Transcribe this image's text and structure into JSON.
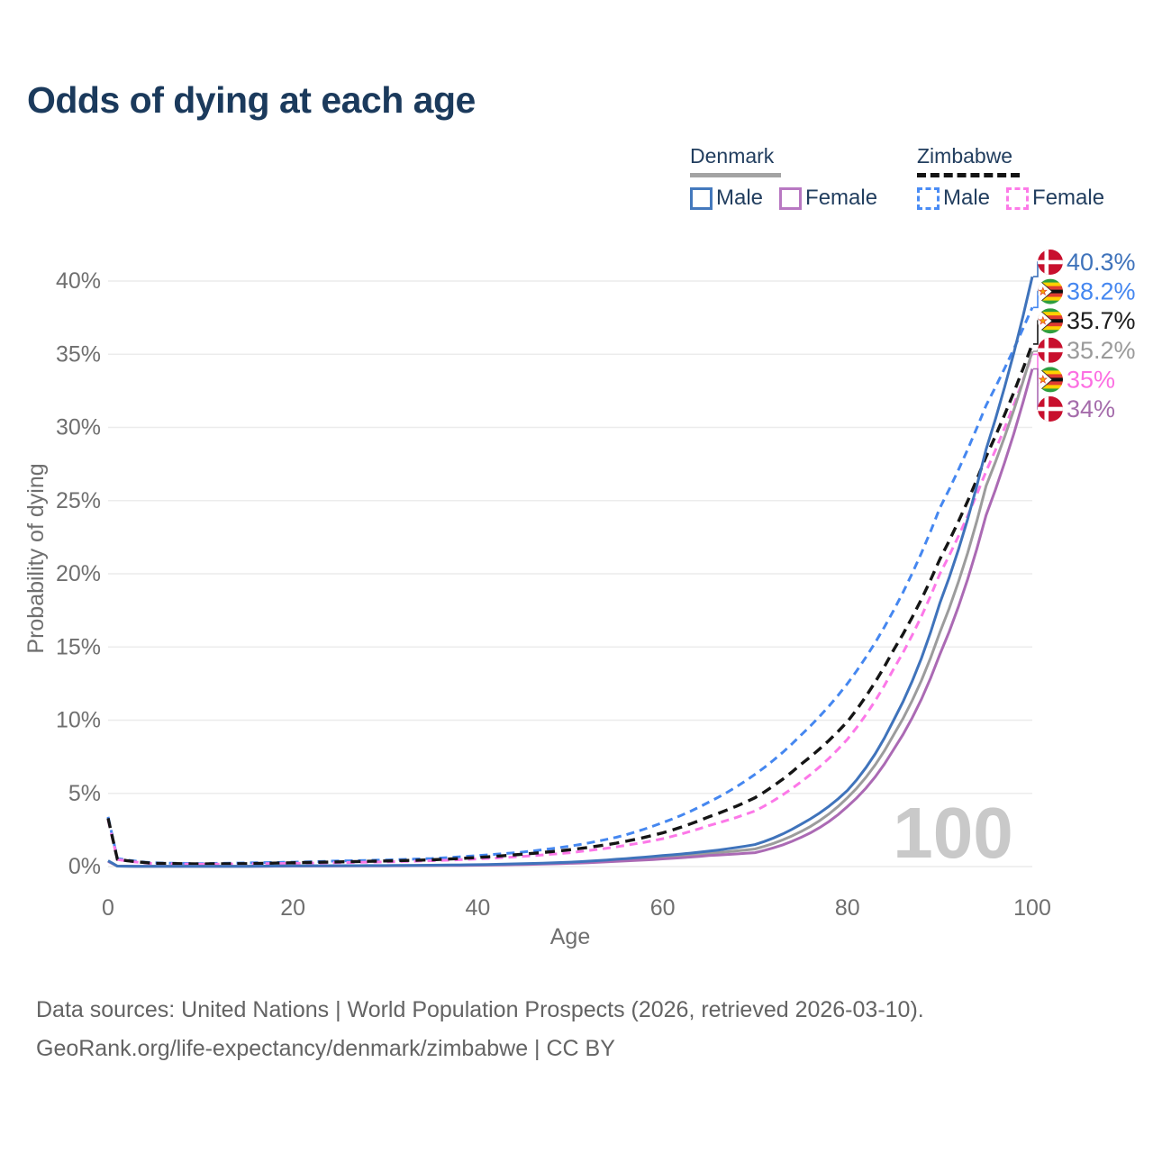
{
  "page": {
    "title": "Odds of dying at each age",
    "watermark_age": "100"
  },
  "legend": {
    "denmark": {
      "title": "Denmark",
      "male_label": "Male",
      "female_label": "Female",
      "male_color": "#4479bd",
      "female_color": "#b878c2",
      "underline_color": "#a3a3a3",
      "underline_style": "solid"
    },
    "zimbabwe": {
      "title": "Zimbabwe",
      "male_label": "Male",
      "female_label": "Female",
      "male_color": "#4a8cf5",
      "female_color": "#fd7ae8",
      "underline_color": "#141414",
      "underline_style": "dashed"
    }
  },
  "footer": {
    "line1": "Data sources: United Nations | World Population Prospects (2026, retrieved 2026-03-10).",
    "line2": "GeoRank.org/life-expectancy/denmark/zimbabwe | CC BY"
  },
  "chart_data": {
    "type": "line",
    "title": "Odds of dying at each age",
    "xlabel": "Age",
    "ylabel": "Probability of dying",
    "xlim": [
      0,
      100
    ],
    "ylim": [
      0,
      41
    ],
    "grid": true,
    "legend_position": "top-right",
    "x_ticks": [
      {
        "value": 0,
        "label": "0"
      },
      {
        "value": 20,
        "label": "20"
      },
      {
        "value": 40,
        "label": "40"
      },
      {
        "value": 60,
        "label": "60"
      },
      {
        "value": 80,
        "label": "80"
      },
      {
        "value": 100,
        "label": "100"
      }
    ],
    "y_ticks": [
      {
        "value": 0,
        "label": "0%"
      },
      {
        "value": 5,
        "label": "5%"
      },
      {
        "value": 10,
        "label": "10%"
      },
      {
        "value": 15,
        "label": "15%"
      },
      {
        "value": 20,
        "label": "20%"
      },
      {
        "value": 25,
        "label": "25%"
      },
      {
        "value": 30,
        "label": "30%"
      },
      {
        "value": 35,
        "label": "35%"
      },
      {
        "value": 40,
        "label": "40%"
      }
    ],
    "x": [
      0,
      1,
      5,
      10,
      15,
      20,
      25,
      30,
      35,
      40,
      45,
      50,
      55,
      60,
      65,
      70,
      75,
      80,
      85,
      90,
      95,
      100
    ],
    "series": [
      {
        "id": "zimbabwe-male",
        "name": "Zimbabwe Male",
        "style": "dashed",
        "color": "#4587f0",
        "width": 3,
        "dash": "9 6",
        "values": [
          3.4,
          0.55,
          0.25,
          0.2,
          0.25,
          0.3,
          0.38,
          0.45,
          0.55,
          0.75,
          1.0,
          1.4,
          2.0,
          3.0,
          4.4,
          6.3,
          9.0,
          12.5,
          17.5,
          24.5,
          31.5,
          38.2
        ],
        "end_value_pct": 38.2
      },
      {
        "id": "zimbabwe-female",
        "name": "Zimbabwe Female",
        "style": "dashed",
        "color": "#fc78e8",
        "width": 3,
        "dash": "9 6",
        "values": [
          3.2,
          0.48,
          0.2,
          0.16,
          0.18,
          0.22,
          0.27,
          0.32,
          0.4,
          0.52,
          0.7,
          0.95,
          1.35,
          1.9,
          2.8,
          3.8,
          5.8,
          8.7,
          13.5,
          20.0,
          27.0,
          35.0
        ],
        "end_value_pct": 35.0
      },
      {
        "id": "zimbabwe-both",
        "name": "Zimbabwe Both sexes",
        "style": "dashed",
        "color": "#151515",
        "width": 3.4,
        "dash": "11 7",
        "values": [
          3.3,
          0.5,
          0.22,
          0.18,
          0.2,
          0.26,
          0.32,
          0.38,
          0.46,
          0.62,
          0.85,
          1.15,
          1.6,
          2.3,
          3.4,
          4.7,
          7.0,
          9.9,
          14.8,
          21.0,
          28.0,
          35.7
        ],
        "end_value_pct": 35.7
      },
      {
        "id": "denmark-both",
        "name": "Denmark Both sexes",
        "style": "solid",
        "color": "#9c9c9c",
        "width": 3,
        "dash": null,
        "values": [
          0.38,
          0.03,
          0.01,
          0.01,
          0.02,
          0.04,
          0.05,
          0.06,
          0.08,
          0.11,
          0.17,
          0.26,
          0.42,
          0.62,
          0.9,
          1.2,
          2.4,
          4.7,
          9.0,
          16.0,
          26.0,
          35.2
        ],
        "end_value_pct": 35.2
      },
      {
        "id": "denmark-female",
        "name": "Denmark Female",
        "style": "solid",
        "color": "#ab6ab4",
        "width": 3,
        "dash": null,
        "values": [
          0.35,
          0.03,
          0.01,
          0.01,
          0.015,
          0.03,
          0.04,
          0.05,
          0.07,
          0.09,
          0.14,
          0.22,
          0.35,
          0.52,
          0.75,
          0.95,
          2.0,
          4.1,
          8.0,
          14.5,
          24.0,
          34.0
        ],
        "end_value_pct": 34.0
      },
      {
        "id": "denmark-male",
        "name": "Denmark Male",
        "style": "solid",
        "color": "#3f73bb",
        "width": 3,
        "dash": null,
        "values": [
          0.4,
          0.03,
          0.01,
          0.01,
          0.02,
          0.05,
          0.06,
          0.07,
          0.09,
          0.13,
          0.2,
          0.3,
          0.5,
          0.75,
          1.05,
          1.5,
          2.9,
          5.2,
          10.0,
          18.0,
          28.5,
          40.3
        ],
        "end_value_pct": 40.3
      }
    ],
    "end_labels": [
      {
        "series": "denmark-male",
        "text": "40.3%",
        "flag": "denmark",
        "color": "#3f73bb"
      },
      {
        "series": "zimbabwe-male",
        "text": "38.2%",
        "flag": "zimbabwe",
        "color": "#4587f0"
      },
      {
        "series": "zimbabwe-both",
        "text": "35.7%",
        "flag": "zimbabwe",
        "color": "#1c1c1c"
      },
      {
        "series": "denmark-both",
        "text": "35.2%",
        "flag": "denmark",
        "color": "#9a9a9a"
      },
      {
        "series": "zimbabwe-female",
        "text": "35%",
        "flag": "zimbabwe",
        "color": "#fc6fe2"
      },
      {
        "series": "denmark-female",
        "text": "34%",
        "flag": "denmark",
        "color": "#a56cab"
      }
    ]
  }
}
